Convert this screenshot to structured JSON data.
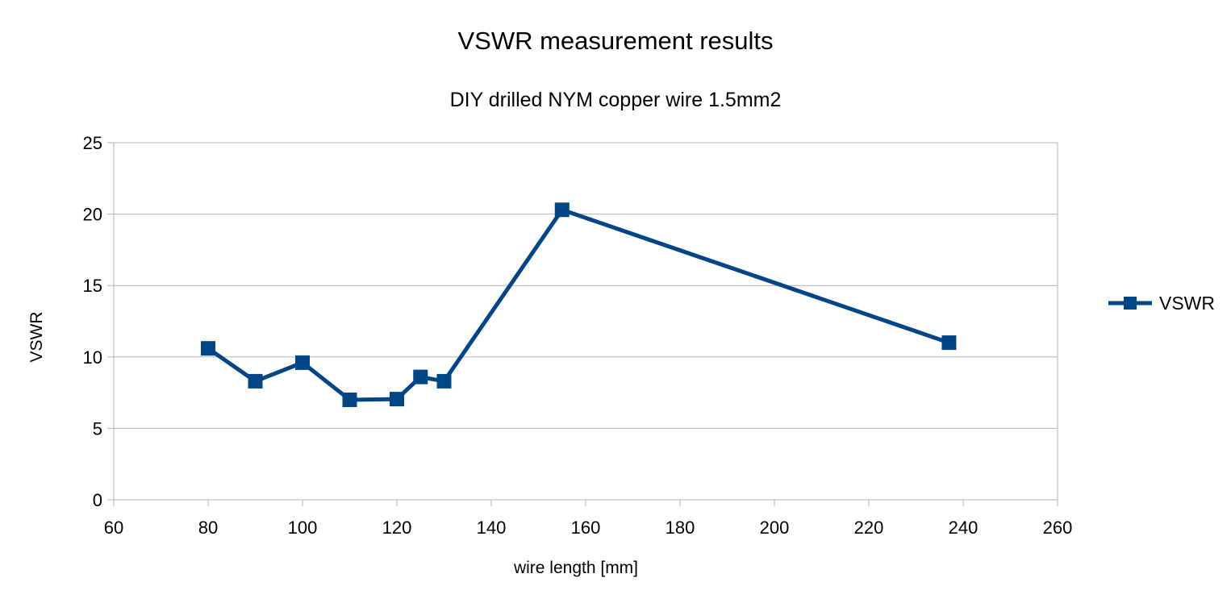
{
  "chart_data": {
    "type": "line",
    "title": "VSWR measurement results",
    "subtitle": "DIY drilled NYM copper wire 1.5mm2",
    "xlabel": "wire length [mm]",
    "ylabel": "VSWR",
    "xlim": [
      60,
      260
    ],
    "ylim": [
      0,
      25
    ],
    "x_ticks": [
      60,
      80,
      100,
      120,
      140,
      160,
      180,
      200,
      220,
      240,
      260
    ],
    "y_ticks": [
      0,
      5,
      10,
      15,
      20,
      25
    ],
    "grid": "horizontal",
    "legend_position": "right",
    "series": [
      {
        "name": "VSWR",
        "color": "#004586",
        "marker": "square",
        "x": [
          80,
          90,
          100,
          110,
          120,
          125,
          130,
          155,
          237
        ],
        "y": [
          10.6,
          8.3,
          9.6,
          7.0,
          7.05,
          8.6,
          8.3,
          20.3,
          11.0
        ]
      }
    ]
  }
}
